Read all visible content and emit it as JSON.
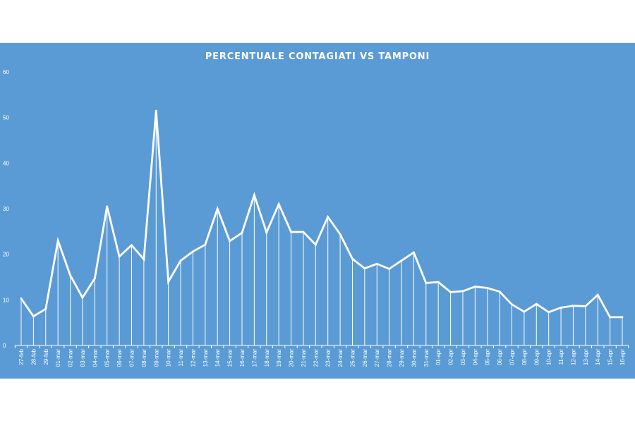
{
  "colors": {
    "panel_background": "#5b9bd5",
    "series_line": "#ffffff",
    "text": "#ffffff"
  },
  "chart_data": {
    "type": "line",
    "title": "PERCENTUALE CONTAGIATI VS TAMPONI",
    "xlabel": "",
    "ylabel": "",
    "ylim": [
      0,
      60
    ],
    "yticks": [
      0,
      10,
      20,
      30,
      40,
      50,
      60
    ],
    "grid": false,
    "drop_lines": true,
    "legend": "none",
    "categories": [
      "27-feb",
      "28-feb",
      "29-feb",
      "01-mar",
      "02-mar",
      "03-mar",
      "04-mar",
      "05-mar",
      "06-mar",
      "07-mar",
      "08-mar",
      "09-mar",
      "10-mar",
      "11-mar",
      "12-mar",
      "13-mar",
      "14-mar",
      "15-mar",
      "16-mar",
      "17-mar",
      "18-mar",
      "19-mar",
      "20-mar",
      "21-mar",
      "22-mar",
      "23-mar",
      "24-mar",
      "25-mar",
      "26-mar",
      "27-mar",
      "28-mar",
      "29-mar",
      "30-mar",
      "31-mar",
      "01-apr",
      "02-apr",
      "03-apr",
      "04-apr",
      "05-apr",
      "06-apr",
      "07-apr",
      "08-apr",
      "09-apr",
      "10-apr",
      "11-apr",
      "12-apr",
      "13-apr",
      "14-apr",
      "15-apr",
      "16-apr"
    ],
    "series": [
      {
        "values": [
          10.3,
          6.4,
          8.0,
          23.0,
          15.4,
          10.5,
          14.7,
          30.5,
          19.5,
          22.0,
          18.9,
          51.5,
          14.0,
          18.6,
          20.6,
          22.1,
          30.0,
          22.9,
          24.7,
          33.0,
          24.8,
          31.0,
          24.9,
          24.9,
          22.1,
          28.2,
          24.4,
          19.0,
          16.9,
          17.9,
          16.8,
          18.6,
          20.4,
          13.7,
          13.9,
          11.7,
          11.9,
          12.9,
          12.6,
          11.8,
          9.0,
          7.4,
          9.1,
          7.3,
          8.3,
          8.7,
          8.6,
          11.1,
          6.2,
          6.2
        ]
      }
    ]
  }
}
